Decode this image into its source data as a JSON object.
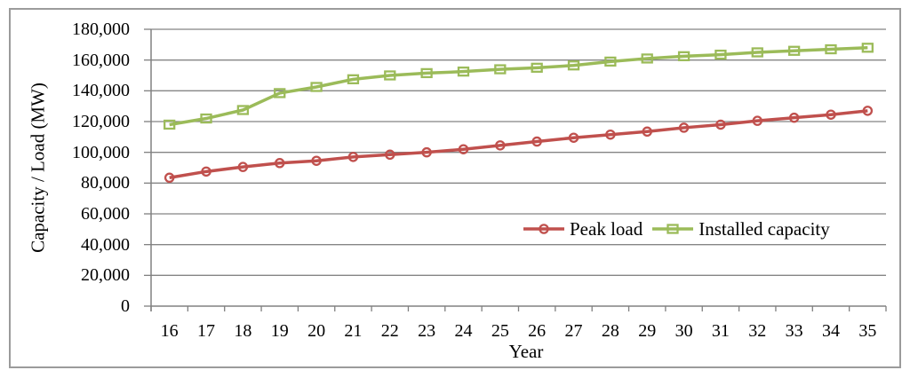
{
  "figure": {
    "y_axis_title": "Capacity / Load (MW)",
    "x_axis_title": "Year"
  },
  "colors": {
    "gridline": "#858585",
    "axis": "#808080",
    "tick": "#808080",
    "frame_border": "#9b9b9b",
    "text": "#000000",
    "background": "#ffffff",
    "peak_load": "#C0504D",
    "installed_capacity": "#9BBB59"
  },
  "chart_data": {
    "type": "line",
    "title": "",
    "xlabel": "Year",
    "ylabel": "Capacity / Load (MW)",
    "x": [
      16,
      17,
      18,
      19,
      20,
      21,
      22,
      23,
      24,
      25,
      26,
      27,
      28,
      29,
      30,
      31,
      32,
      33,
      34,
      35
    ],
    "ylim": [
      0,
      180000
    ],
    "ytick_step": 20000,
    "grid": true,
    "legend_position": "inside-right-middle",
    "series": [
      {
        "name": "Peak load",
        "color": "#C0504D",
        "marker": "circle",
        "values": [
          83500,
          87500,
          90500,
          93000,
          94500,
          97000,
          98500,
          100000,
          102000,
          104500,
          107000,
          109500,
          111500,
          113500,
          116000,
          118000,
          120500,
          122500,
          124500,
          127000
        ]
      },
      {
        "name": "Installed capacity",
        "color": "#9BBB59",
        "marker": "square",
        "values": [
          118000,
          122000,
          127500,
          138500,
          142500,
          147500,
          150000,
          151500,
          152500,
          154000,
          155000,
          156500,
          159000,
          161000,
          162500,
          163500,
          165000,
          166000,
          167000,
          168000
        ]
      }
    ]
  }
}
